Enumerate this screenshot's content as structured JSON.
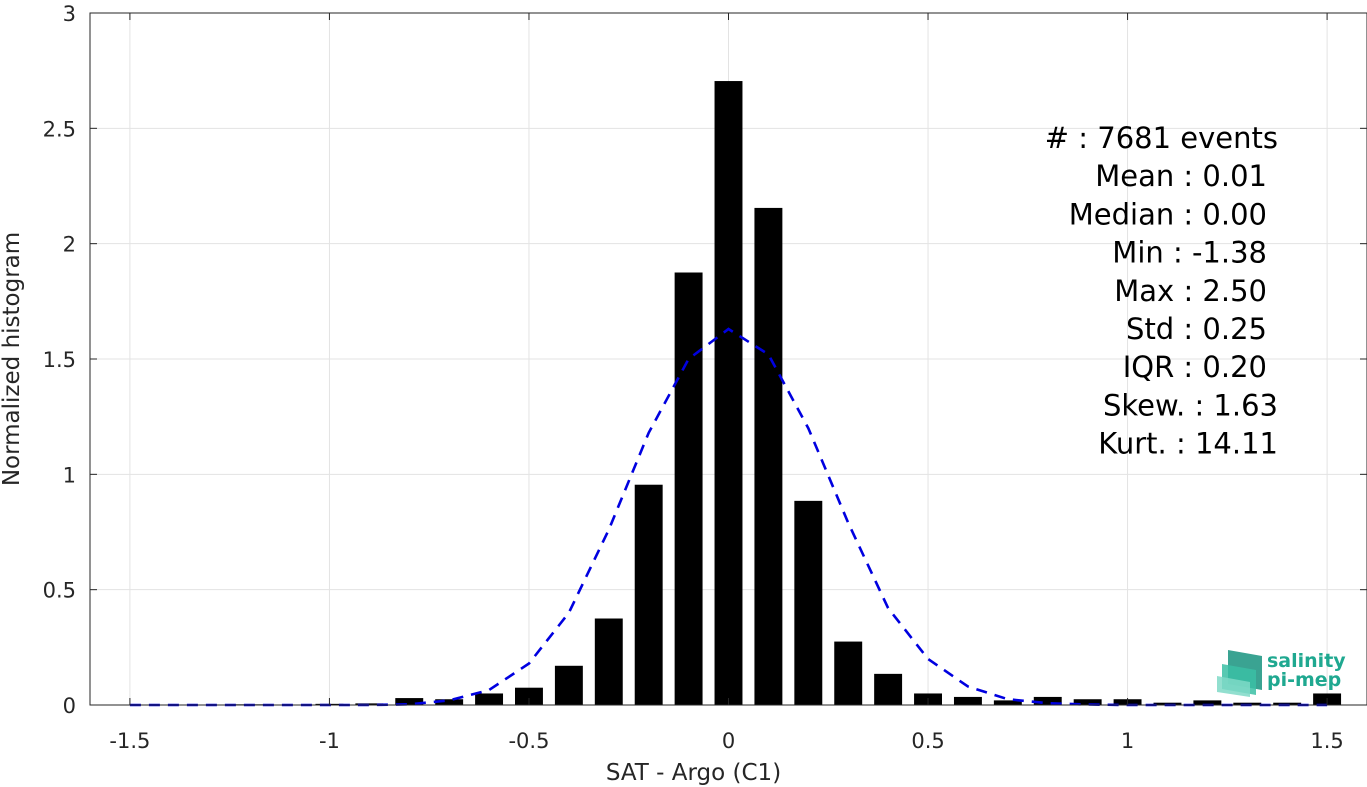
{
  "chart_data": {
    "type": "bar",
    "xlabel": "SAT - Argo (C1)",
    "ylabel": "Normalized histogram",
    "xlim": [
      -1.6,
      1.6
    ],
    "ylim": [
      0,
      3
    ],
    "xticks": [
      -1.5,
      -1,
      -0.5,
      0,
      0.5,
      1,
      1.5
    ],
    "xtick_labels": [
      "-1.5",
      "-1",
      "-0.5",
      "0",
      "0.5",
      "1",
      "1.5"
    ],
    "yticks": [
      0,
      0.5,
      1,
      1.5,
      2,
      2.5,
      3
    ],
    "ytick_labels": [
      "0",
      "0.5",
      "1",
      "1.5",
      "2",
      "2.5",
      "3"
    ],
    "grid": true,
    "bar_color": "#000000",
    "bins": {
      "x": [
        -1.5,
        -1.4,
        -1.3,
        -1.2,
        -1.1,
        -1.0,
        -0.9,
        -0.8,
        -0.7,
        -0.6,
        -0.5,
        -0.4,
        -0.3,
        -0.2,
        -0.1,
        0.0,
        0.1,
        0.2,
        0.3,
        0.4,
        0.5,
        0.6,
        0.7,
        0.8,
        0.9,
        1.0,
        1.1,
        1.2,
        1.3,
        1.4,
        1.5
      ],
      "values": [
        0.0,
        0.0,
        0.0,
        0.003,
        0.0,
        0.005,
        0.007,
        0.03,
        0.025,
        0.05,
        0.075,
        0.17,
        0.375,
        0.955,
        1.875,
        2.705,
        2.155,
        0.885,
        0.275,
        0.135,
        0.05,
        0.035,
        0.02,
        0.035,
        0.025,
        0.025,
        0.01,
        0.02,
        0.01,
        0.01,
        0.05
      ]
    },
    "fit_curve": {
      "style": "dashed",
      "color": "#0000e0",
      "x": [
        -1.5,
        -1.4,
        -1.3,
        -1.2,
        -1.1,
        -1.0,
        -0.9,
        -0.8,
        -0.7,
        -0.6,
        -0.5,
        -0.4,
        -0.3,
        -0.2,
        -0.1,
        0.0,
        0.1,
        0.2,
        0.3,
        0.4,
        0.5,
        0.6,
        0.7,
        0.8,
        0.9,
        1.0,
        1.1,
        1.2,
        1.3,
        1.4,
        1.5
      ],
      "y": [
        0.0,
        0.0,
        0.0,
        0.0,
        0.0,
        0.0,
        0.0,
        0.003,
        0.02,
        0.065,
        0.18,
        0.4,
        0.76,
        1.18,
        1.5,
        1.63,
        1.52,
        1.2,
        0.79,
        0.42,
        0.2,
        0.08,
        0.025,
        0.008,
        0.002,
        0.0,
        0.0,
        0.0,
        0.0,
        0.0,
        0.0
      ]
    }
  },
  "stats": [
    {
      "key": "count",
      "text": "#  : 7681 events"
    },
    {
      "key": "mean",
      "text": "Mean : 0.01"
    },
    {
      "key": "median",
      "text": "Median : 0.00"
    },
    {
      "key": "min",
      "text": "Min : -1.38"
    },
    {
      "key": "max",
      "text": "Max : 2.50"
    },
    {
      "key": "std",
      "text": "Std : 0.25"
    },
    {
      "key": "iqr",
      "text": "IQR : 0.20"
    },
    {
      "key": "skew",
      "text": "Skew. : 1.63"
    },
    {
      "key": "kurt",
      "text": "Kurt. : 14.11"
    }
  ],
  "logo": {
    "line1": "salinity",
    "line2": "pi-mep",
    "color": "#1fa890"
  }
}
